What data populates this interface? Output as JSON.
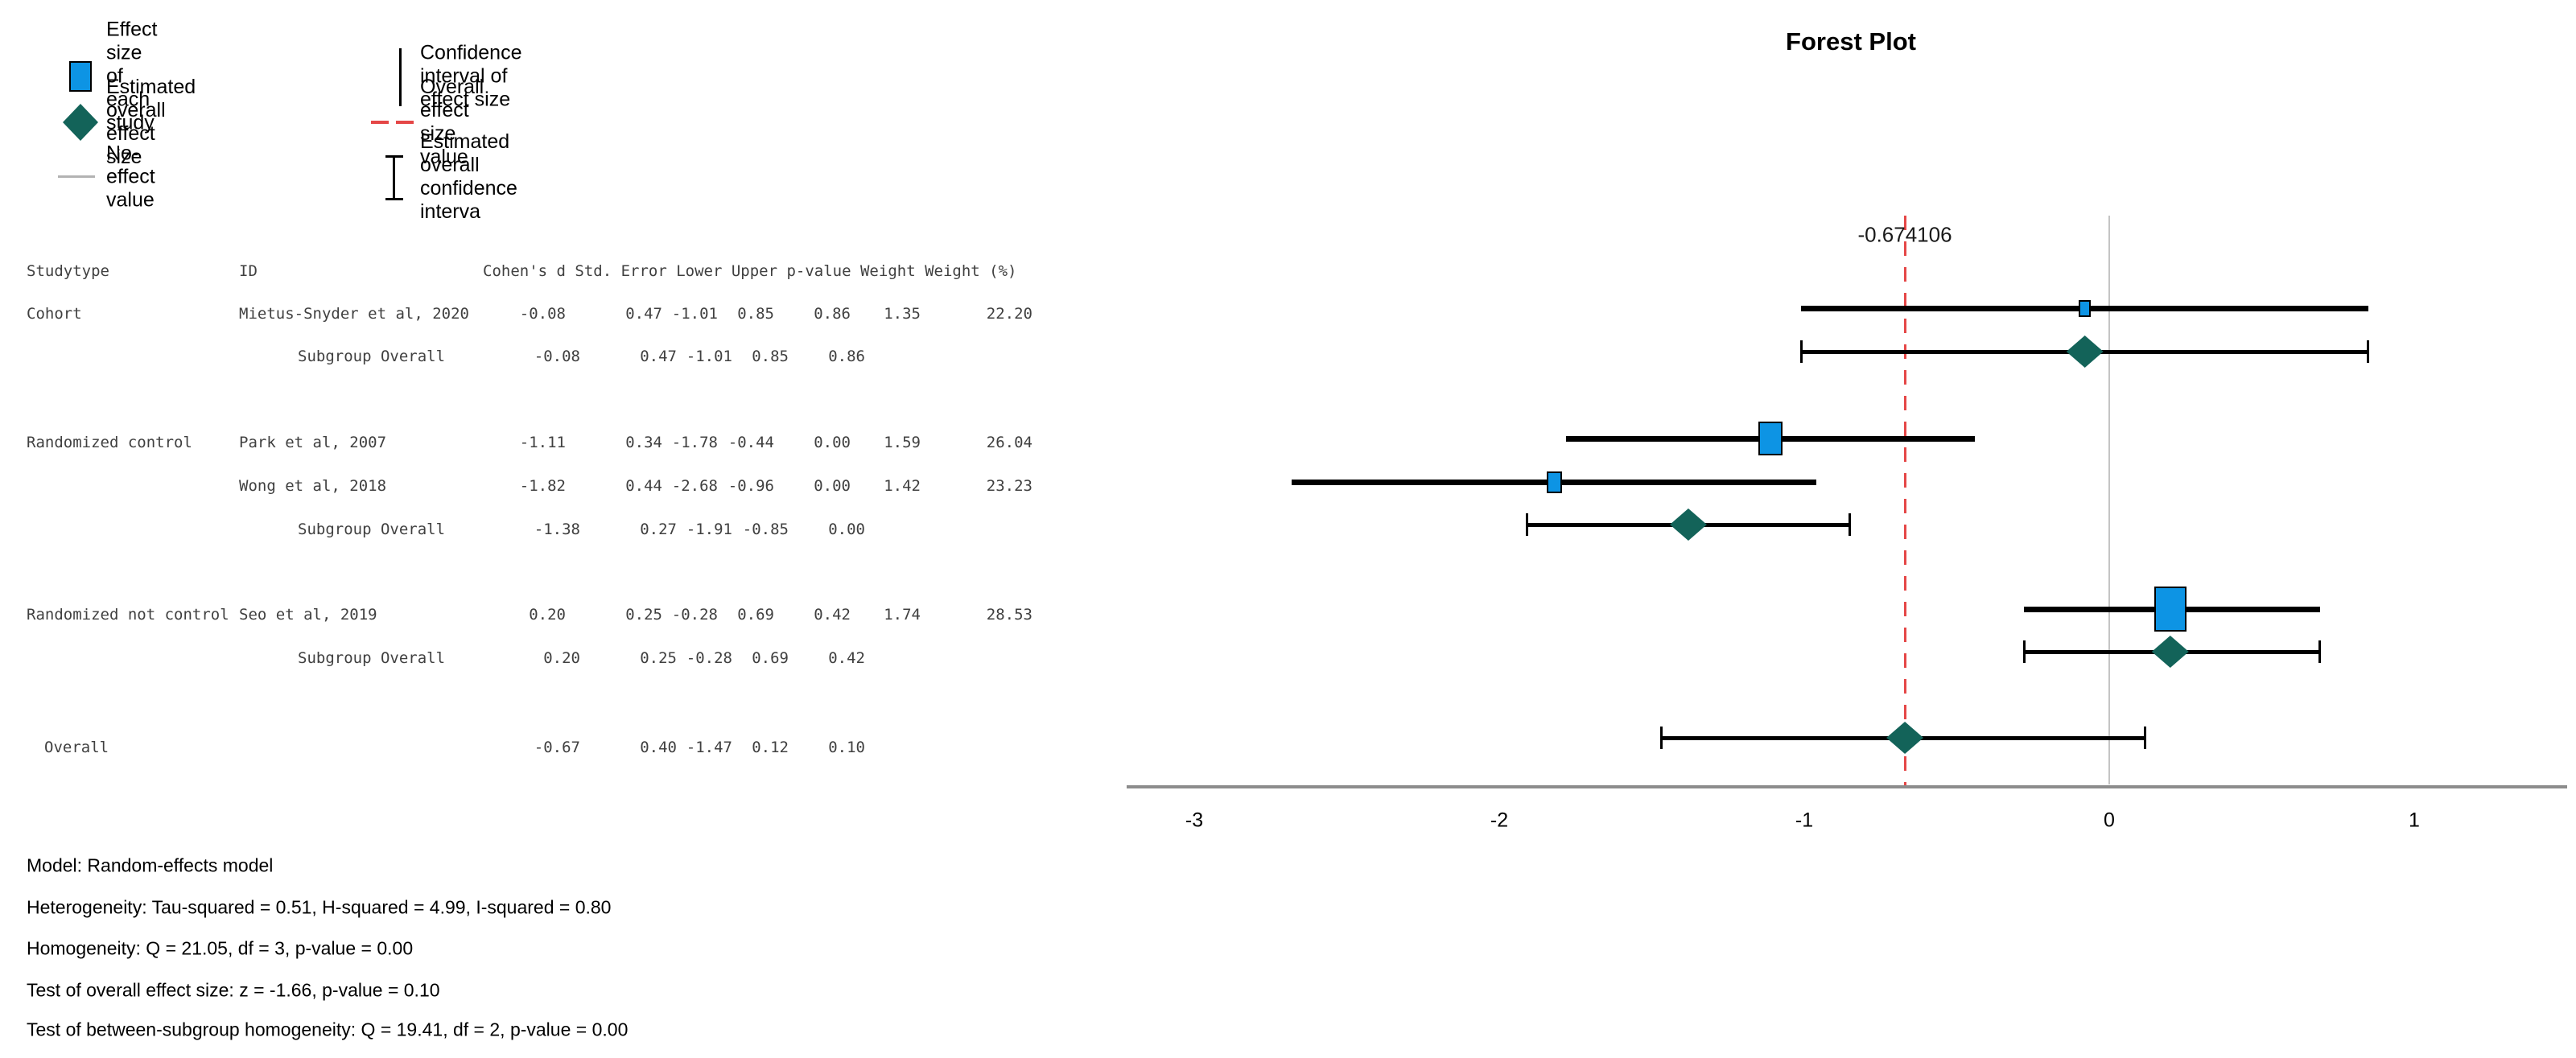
{
  "title": "Forest Plot",
  "legend": {
    "items": [
      {
        "key": "study-effect",
        "label": "Effect size of each study"
      },
      {
        "key": "overall-effect",
        "label": "Estimated overall effect size"
      },
      {
        "key": "no-effect",
        "label": "No-effect value"
      },
      {
        "key": "ci",
        "label": "Confidence interval of effect size"
      },
      {
        "key": "overall-value",
        "label": "Overall effect size value"
      },
      {
        "key": "overall-ci",
        "label": "Estimated overall confidence interva"
      }
    ]
  },
  "table": {
    "header": {
      "studytype": "Studytype",
      "id": "ID",
      "measures": "Cohen's d Std. Error Lower Upper p-value Weight Weight (%)"
    },
    "rows": [
      {
        "studytype": "Cohort",
        "id": "Mietus-Snyder et al, 2020",
        "cells": [
          "-0.08",
          "0.47",
          "-1.01",
          "0.85",
          "0.86",
          "1.35",
          "22.20"
        ],
        "type": "study"
      },
      {
        "studytype": "",
        "id": "Subgroup Overall",
        "cells": [
          "-0.08",
          "0.47",
          "-1.01",
          "0.85",
          "0.86"
        ],
        "type": "subgroup"
      },
      {
        "studytype": "Randomized control",
        "id": "Park et al, 2007",
        "cells": [
          "-1.11",
          "0.34",
          "-1.78",
          "-0.44",
          "0.00",
          "1.59",
          "26.04"
        ],
        "type": "study"
      },
      {
        "studytype": "",
        "id": "Wong et al, 2018",
        "cells": [
          "-1.82",
          "0.44",
          "-2.68",
          "-0.96",
          "0.00",
          "1.42",
          "23.23"
        ],
        "type": "study"
      },
      {
        "studytype": "",
        "id": "Subgroup Overall",
        "cells": [
          "-1.38",
          "0.27",
          "-1.91",
          "-0.85",
          "0.00"
        ],
        "type": "subgroup"
      },
      {
        "studytype": "Randomized not control",
        "id": "Seo et al, 2019",
        "cells": [
          "0.20",
          "0.25",
          "-0.28",
          "0.69",
          "0.42",
          "1.74",
          "28.53"
        ],
        "type": "study"
      },
      {
        "studytype": "",
        "id": "Subgroup Overall",
        "cells": [
          "0.20",
          "0.25",
          "-0.28",
          "0.69",
          "0.42"
        ],
        "type": "subgroup"
      },
      {
        "studytype": "Overall",
        "id": "",
        "cells": [
          "-0.67",
          "0.40",
          "-1.47",
          "0.12",
          "0.10"
        ],
        "type": "overall"
      }
    ]
  },
  "stats": {
    "lines": [
      "Model: Random-effects model",
      "Heterogeneity: Tau-squared = 0.51, H-squared = 4.99, I-squared = 0.80",
      "Homogeneity: Q = 21.05, df = 3, p-value = 0.00",
      "Test of overall effect size: z = -1.66, p-value = 0.10",
      "Test of between-subgroup homogeneity: Q = 19.41, df = 2, p-value = 0.00"
    ]
  },
  "chart_data": {
    "type": "forest",
    "title": "Forest Plot",
    "x_ticks": [
      -3,
      -2,
      -1,
      0,
      1
    ],
    "xlim": [
      -3.25,
      1.5
    ],
    "no_effect_value": 0,
    "overall_effect_line": {
      "value": -0.674106,
      "label": "-0.674106",
      "style": "red-dashed"
    },
    "rows": [
      {
        "group": "Cohort",
        "id": "Mietus-Snyder et al, 2020",
        "kind": "study",
        "d": -0.08,
        "se": 0.47,
        "lower": -1.01,
        "upper": 0.85,
        "p": 0.86,
        "weight": 1.35,
        "weight_pct": 22.2
      },
      {
        "group": "Cohort",
        "id": "Subgroup Overall",
        "kind": "subgroup",
        "d": -0.08,
        "se": 0.47,
        "lower": -1.01,
        "upper": 0.85,
        "p": 0.86
      },
      {
        "group": "Randomized control",
        "id": "Park et al, 2007",
        "kind": "study",
        "d": -1.11,
        "se": 0.34,
        "lower": -1.78,
        "upper": -0.44,
        "p": 0.0,
        "weight": 1.59,
        "weight_pct": 26.04
      },
      {
        "group": "Randomized control",
        "id": "Wong et al, 2018",
        "kind": "study",
        "d": -1.82,
        "se": 0.44,
        "lower": -2.68,
        "upper": -0.96,
        "p": 0.0,
        "weight": 1.42,
        "weight_pct": 23.23
      },
      {
        "group": "Randomized control",
        "id": "Subgroup Overall",
        "kind": "subgroup",
        "d": -1.38,
        "se": 0.27,
        "lower": -1.91,
        "upper": -0.85,
        "p": 0.0
      },
      {
        "group": "Randomized not control",
        "id": "Seo et al, 2019",
        "kind": "study",
        "d": 0.2,
        "se": 0.25,
        "lower": -0.28,
        "upper": 0.69,
        "p": 0.42,
        "weight": 1.74,
        "weight_pct": 28.53
      },
      {
        "group": "Randomized not control",
        "id": "Subgroup Overall",
        "kind": "subgroup",
        "d": 0.2,
        "se": 0.25,
        "lower": -0.28,
        "upper": 0.69,
        "p": 0.42
      },
      {
        "group": "Overall",
        "id": "Overall",
        "kind": "overall",
        "d": -0.67,
        "se": 0.4,
        "lower": -1.47,
        "upper": 0.12,
        "p": 0.1
      }
    ],
    "legend_position": "top-left",
    "grid": false
  },
  "colors": {
    "study_marker": "#0d94e4",
    "overall_marker": "#136359",
    "ref_line": "#e54747",
    "no_effect_line": "#c4c4c4",
    "axis_line": "#8c8c8c",
    "ci_line": "#000000"
  }
}
